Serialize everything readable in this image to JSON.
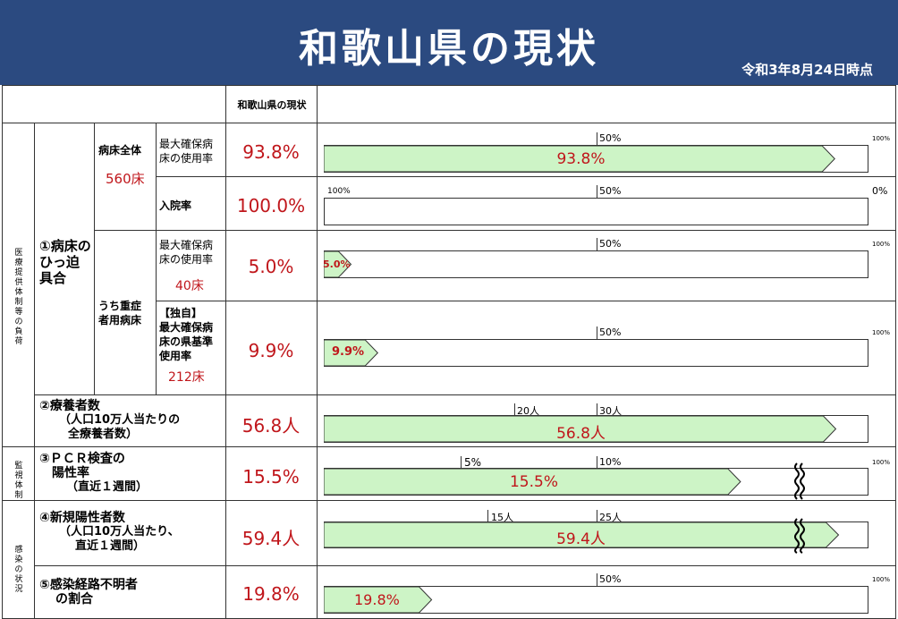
{
  "header": {
    "title": "和歌山県の現状",
    "date": "令和3年8月24日時点"
  },
  "table_header": {
    "current_col": "和歌山県の現状"
  },
  "categories": {
    "medical": "医療提供体制等の負荷",
    "monitoring": "監視体制",
    "infection": "感染の状況"
  },
  "indicator1": {
    "label_line1": "①病床の",
    "label_line2": "ひっ迫",
    "label_line3": "具合",
    "all_beds_label": "病床全体",
    "all_beds_count": "560床",
    "severe_beds_label_line1": "うち重症",
    "severe_beds_label_line2": "者用病床"
  },
  "rows": [
    {
      "sub_line1": "最大確保病",
      "sub_line2": "床の使用率",
      "value": "93.8%",
      "bar_label": "93.8%",
      "bar_fraction": 0.938,
      "tick_label": "50%",
      "right_label": "100%"
    },
    {
      "sub_line1": "入院率",
      "value": "100.0%",
      "bar_fraction": 0,
      "left_label": "100%",
      "tick_label": "50%",
      "right_label": "0%"
    },
    {
      "sub_line1": "最大確保病",
      "sub_line2": "床の使用率",
      "sub_line3": "40床",
      "value": "5.0%",
      "bar_label": "5.0%",
      "bar_fraction": 0.05,
      "tick_label": "50%",
      "right_label": "100%"
    },
    {
      "sub_line1": "【独自】",
      "sub_line2": "最大確保病",
      "sub_line3": "床の県基準",
      "sub_line4": "使用率",
      "sub_line5": "212床",
      "value": "9.9%",
      "bar_label": "9.9%",
      "bar_fraction": 0.099,
      "tick_label": "50%",
      "right_label": "100%"
    },
    {
      "label_line1": "②療養者数",
      "label_line2": "（人口10万人当たりの",
      "label_line3": "全療養者数）",
      "value": "56.8人",
      "bar_label": "56.8人",
      "bar_fraction": 0.94,
      "tick1_label": "20人",
      "tick2_label": "30人"
    },
    {
      "label_line1": "③ＰＣＲ検査の",
      "label_line2": "陽性率",
      "label_line3": "（直近１週間）",
      "value": "15.5%",
      "bar_label": "15.5%",
      "bar_fraction": 0.765,
      "tick1_label": "5%",
      "tick2_label": "10%",
      "right_label": "100%"
    },
    {
      "label_line1": "④新規陽性者数",
      "label_line2": "（人口10万人当たり、",
      "label_line3": "直近１週間）",
      "value": "59.4人",
      "bar_label": "59.4人",
      "bar_fraction": 0.945,
      "tick1_label": "15人",
      "tick2_label": "25人"
    },
    {
      "label_line1": "⑤感染経路不明者",
      "label_line2": "の割合",
      "value": "19.8%",
      "bar_label": "19.8%",
      "bar_fraction": 0.198,
      "tick_label": "50%",
      "right_label": "100%"
    }
  ],
  "colors": {
    "header_bg": "#2b4a80",
    "bar_fill": "#cdf4c6",
    "value_red": "#c0161b"
  }
}
